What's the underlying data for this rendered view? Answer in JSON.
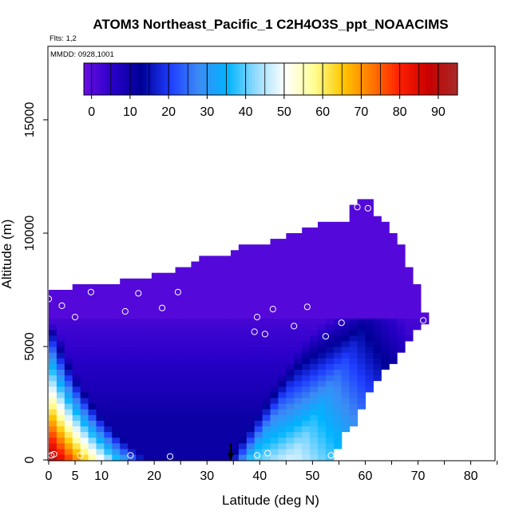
{
  "chart_data": {
    "type": "heatmap",
    "title": "ATOM3 Northeast_Pacific_1 C2H4O3S_ppt_NOAACIMS",
    "flights_label": "Flts: 1,2",
    "dates_label": "MMDD: 0928,1001",
    "xlabel": "Latitude (deg N)",
    "ylabel": "Altitude (m)",
    "xlim": [
      0,
      85
    ],
    "ylim": [
      0,
      17500
    ],
    "x_ticks": [
      0,
      5,
      10,
      20,
      30,
      40,
      50,
      60,
      70,
      80
    ],
    "y_ticks": [
      0,
      5000,
      10000,
      15000
    ],
    "colorbar": {
      "range": [
        -2,
        95
      ],
      "ticks": [
        0,
        10,
        20,
        30,
        40,
        50,
        60,
        70,
        80,
        90
      ],
      "colors": [
        "#6A0DE3",
        "#2800C8",
        "#000096",
        "#1E3CFF",
        "#3C8CF5",
        "#00B4FF",
        "#96DCFF",
        "#FFFFFF",
        "#FFFF96",
        "#FFC800",
        "#FF7800",
        "#FF1E00",
        "#C80000",
        "#A52A2A"
      ]
    },
    "arrow_latitude": 34.5,
    "observations": [
      {
        "lat": 0,
        "alt": 7100
      },
      {
        "lat": 2.5,
        "alt": 6800
      },
      {
        "lat": 5,
        "alt": 6300
      },
      {
        "lat": 8,
        "alt": 7400
      },
      {
        "lat": 14.5,
        "alt": 6550
      },
      {
        "lat": 17,
        "alt": 7350
      },
      {
        "lat": 21.5,
        "alt": 6700
      },
      {
        "lat": 24.5,
        "alt": 7400
      },
      {
        "lat": 39.5,
        "alt": 6300
      },
      {
        "lat": 39,
        "alt": 5650
      },
      {
        "lat": 41,
        "alt": 5550
      },
      {
        "lat": 42.5,
        "alt": 6650
      },
      {
        "lat": 46.5,
        "alt": 5900
      },
      {
        "lat": 49,
        "alt": 6750
      },
      {
        "lat": 52.5,
        "alt": 5450
      },
      {
        "lat": 55.5,
        "alt": 6050
      },
      {
        "lat": 58.5,
        "alt": 11150
      },
      {
        "lat": 60.5,
        "alt": 11100
      },
      {
        "lat": 71,
        "alt": 6150
      },
      {
        "lat": 0.5,
        "alt": 200
      },
      {
        "lat": 1,
        "alt": 250
      },
      {
        "lat": 6,
        "alt": 200
      },
      {
        "lat": 15.5,
        "alt": 200
      },
      {
        "lat": 23,
        "alt": 150
      },
      {
        "lat": 39.5,
        "alt": 200
      },
      {
        "lat": 41.5,
        "alt": 300
      },
      {
        "lat": 53.5,
        "alt": 200
      }
    ]
  }
}
